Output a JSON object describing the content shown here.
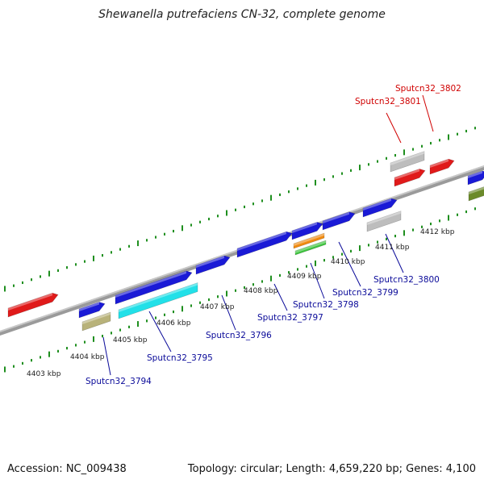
{
  "title": "Shewanella putrefaciens CN-32, complete genome",
  "footer": {
    "accession": "Accession: NC_009438",
    "summary": "Topology: circular; Length: 4,659,220 bp; Genes: 4,100"
  },
  "scale_ticks": [
    "4403 kbp",
    "4404 kbp",
    "4405 kbp",
    "4406 kbp",
    "4407 kbp",
    "4408 kbp",
    "4409 kbp",
    "4410 kbp",
    "4411 kbp",
    "4412 kbp"
  ],
  "gene_labels": [
    {
      "text": "Sputcn32_3794",
      "color": "#0a0a99"
    },
    {
      "text": "Sputcn32_3795",
      "color": "#0a0a99"
    },
    {
      "text": "Sputcn32_3796",
      "color": "#0a0a99"
    },
    {
      "text": "Sputcn32_3797",
      "color": "#0a0a99"
    },
    {
      "text": "Sputcn32_3798",
      "color": "#0a0a99"
    },
    {
      "text": "Sputcn32_3799",
      "color": "#0a0a99"
    },
    {
      "text": "Sputcn32_3800",
      "color": "#0a0a99"
    },
    {
      "text": "Sputcn32_3801",
      "color": "#d00000"
    },
    {
      "text": "Sputcn32_3802",
      "color": "#d00000"
    }
  ],
  "colors": {
    "genome_line": "#8a8a8a",
    "scale_dots": "#1f8f1f",
    "cds_blue": "#1a1ad6",
    "cds_red": "#e01a1a",
    "cds_cyan": "#22e0e8",
    "cds_grey": "#bdbdbd",
    "cds_olive": "#b8b27a",
    "cds_orange": "#f08a10",
    "cds_green": "#3ac43a",
    "cds_darkolive": "#6b8a2a"
  }
}
